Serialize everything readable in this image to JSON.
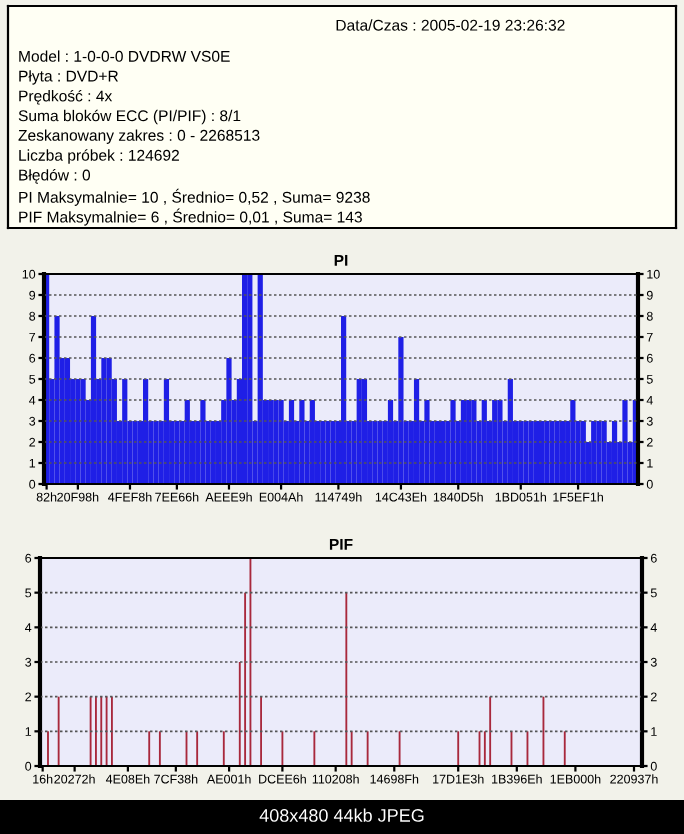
{
  "chart_data": [
    {
      "type": "other",
      "title": "Data/Czas : 2005-02-19 23:26:32",
      "annotations": [
        "Model : 1-0-0-0 DVDRW VS0E",
        "Płyta : DVD+R",
        "Prędkość : 4x",
        "Suma bloków ECC (PI/PIF) : 8/1",
        "Zeskanowany zakres : 0 - 2268513",
        "Liczba próbek : 124692",
        "Błędów : 0",
        "PI Maksymalnie= 10 , Średnio= 0,52 , Suma= 9238",
        "PIF Maksymalnie= 6 , Średnio= 0,01 , Suma= 143"
      ]
    },
    {
      "type": "bar",
      "title": "PI",
      "color": "#1f1fe6",
      "grid": "y",
      "categories": [
        "82h",
        null,
        null,
        null,
        null,
        null,
        "20F98h",
        null,
        null,
        null,
        null,
        null,
        null,
        null,
        null,
        null,
        "4FEF8h",
        null,
        null,
        null,
        null,
        null,
        null,
        null,
        null,
        "7EE66h",
        null,
        null,
        null,
        null,
        null,
        null,
        null,
        null,
        null,
        "AEEE9h",
        null,
        null,
        null,
        null,
        null,
        null,
        null,
        null,
        null,
        "E004Ah",
        null,
        null,
        null,
        null,
        null,
        null,
        null,
        null,
        null,
        null,
        "114749h",
        null,
        null,
        null,
        null,
        null,
        null,
        null,
        null,
        null,
        null,
        null,
        "14C43Eh",
        null,
        null,
        null,
        null,
        null,
        null,
        null,
        null,
        null,
        null,
        "1840D5h",
        null,
        null,
        null,
        null,
        null,
        null,
        null,
        null,
        null,
        null,
        null,
        "1BD051h",
        null,
        null,
        null,
        null,
        null,
        null,
        null,
        null,
        null,
        null,
        "1F5EF1h",
        null,
        null,
        null,
        null,
        null,
        null,
        null,
        null,
        null,
        null,
        null
      ],
      "values": [
        10,
        5,
        8,
        6,
        6,
        5,
        5,
        5,
        4,
        8,
        5,
        6,
        6,
        5,
        3,
        5,
        3,
        3,
        3,
        5,
        3,
        3,
        3,
        5,
        3,
        3,
        3,
        4,
        3,
        3,
        4,
        3,
        3,
        3,
        4,
        6,
        4,
        5,
        10,
        10,
        3,
        10,
        4,
        4,
        4,
        4,
        3,
        4,
        3,
        4,
        3,
        4,
        3,
        3,
        3,
        3,
        3,
        8,
        3,
        3,
        5,
        5,
        3,
        3,
        3,
        3,
        4,
        3,
        7,
        3,
        3,
        5,
        3,
        4,
        3,
        3,
        3,
        3,
        4,
        3,
        4,
        4,
        4,
        3,
        4,
        3,
        4,
        4,
        3,
        5,
        3,
        3,
        3,
        3,
        3,
        3,
        3,
        3,
        3,
        3,
        3,
        4,
        3,
        3,
        2,
        3,
        3,
        3,
        2,
        3,
        2,
        4,
        2,
        4
      ],
      "ylim": [
        0,
        10
      ],
      "yticks": [
        0,
        1,
        2,
        3,
        4,
        5,
        6,
        7,
        8,
        9,
        10
      ],
      "y2lim": [
        0,
        10
      ],
      "y2ticks": [
        0,
        1,
        2,
        3,
        4,
        5,
        6,
        7,
        8,
        9,
        10
      ]
    },
    {
      "type": "bar",
      "title": "PIF",
      "color": "#a8283c",
      "grid": "y",
      "categories": [
        "16h",
        null,
        null,
        null,
        null,
        null,
        "20272h",
        null,
        null,
        null,
        null,
        null,
        null,
        null,
        null,
        null,
        "4E08Eh",
        null,
        null,
        null,
        null,
        null,
        null,
        null,
        null,
        "7CF38h",
        null,
        null,
        null,
        null,
        null,
        null,
        null,
        null,
        null,
        "AE001h",
        null,
        null,
        null,
        null,
        null,
        null,
        null,
        null,
        null,
        "DCEE6h",
        null,
        null,
        null,
        null,
        null,
        null,
        null,
        null,
        null,
        "110208h",
        null,
        null,
        null,
        null,
        null,
        null,
        null,
        null,
        null,
        null,
        "14698Fh",
        null,
        null,
        null,
        null,
        null,
        null,
        null,
        null,
        null,
        null,
        null,
        "17D1E3h",
        null,
        null,
        null,
        null,
        null,
        null,
        null,
        null,
        null,
        null,
        "1B396Eh",
        null,
        null,
        null,
        null,
        null,
        null,
        null,
        null,
        null,
        null,
        "1EB000h",
        null,
        null,
        null,
        null,
        null,
        null,
        null,
        null,
        null,
        null,
        "220937h",
        null
      ],
      "values": [
        null,
        1,
        null,
        2,
        null,
        null,
        null,
        null,
        null,
        2,
        2,
        2,
        2,
        2,
        null,
        null,
        null,
        null,
        null,
        null,
        1,
        null,
        1,
        null,
        null,
        null,
        null,
        1,
        null,
        1,
        null,
        null,
        null,
        null,
        1,
        null,
        null,
        3,
        5,
        6,
        null,
        2,
        null,
        null,
        null,
        1,
        null,
        null,
        null,
        null,
        null,
        1,
        null,
        null,
        null,
        null,
        null,
        5,
        1,
        null,
        null,
        1,
        null,
        null,
        null,
        null,
        null,
        1,
        null,
        null,
        null,
        null,
        null,
        null,
        null,
        null,
        null,
        null,
        1,
        null,
        null,
        null,
        1,
        1,
        2,
        null,
        null,
        null,
        1,
        null,
        null,
        1,
        null,
        null,
        2,
        null,
        null,
        null,
        1,
        null,
        null,
        null,
        null,
        null,
        null,
        null,
        null,
        null,
        null,
        null,
        null,
        null,
        null
      ],
      "ylim": [
        0,
        6
      ],
      "yticks": [
        0,
        1,
        2,
        3,
        4,
        5,
        6
      ],
      "y2lim": [
        0,
        6
      ],
      "y2ticks": [
        0,
        1,
        2,
        3,
        4,
        5,
        6
      ],
      "annotations": [
        "408x480 44kb JPEG"
      ]
    }
  ]
}
